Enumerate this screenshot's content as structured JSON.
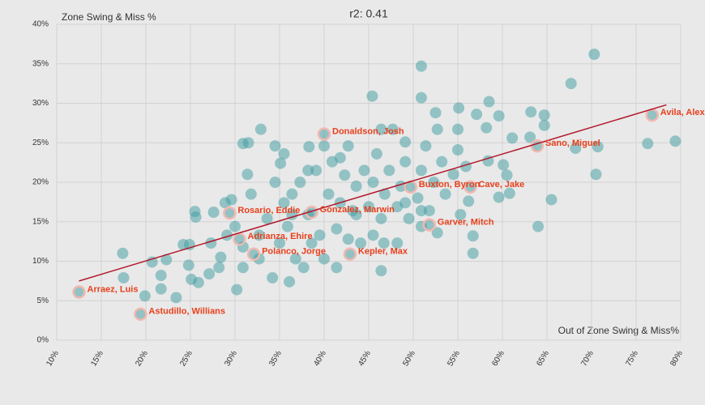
{
  "chart_data": {
    "type": "scatter",
    "title": "r2: 0.41",
    "y_label": "Zone Swing & Miss %",
    "x_label": "Out of Zone Swing & Miss%",
    "xlim": [
      10,
      80
    ],
    "ylim": [
      0,
      40
    ],
    "xticks": [
      {
        "value": 10,
        "label": "10%"
      },
      {
        "value": 15,
        "label": "15%"
      },
      {
        "value": 20,
        "label": "20%"
      },
      {
        "value": 25,
        "label": "25%"
      },
      {
        "value": 30,
        "label": "30%"
      },
      {
        "value": 35,
        "label": "35%"
      },
      {
        "value": 40,
        "label": "40%"
      },
      {
        "value": 45,
        "label": "45%"
      },
      {
        "value": 50,
        "label": "50%"
      },
      {
        "value": 55,
        "label": "55%"
      },
      {
        "value": 60,
        "label": "60%"
      },
      {
        "value": 65,
        "label": "65%"
      },
      {
        "value": 70,
        "label": "70%"
      },
      {
        "value": 75,
        "label": "75%"
      },
      {
        "value": 80,
        "label": "80%"
      }
    ],
    "yticks": [
      {
        "value": 0,
        "label": "0%"
      },
      {
        "value": 5,
        "label": "5%"
      },
      {
        "value": 10,
        "label": "10%"
      },
      {
        "value": 15,
        "label": "15%"
      },
      {
        "value": 20,
        "label": "20%"
      },
      {
        "value": 25,
        "label": "25%"
      },
      {
        "value": 30,
        "label": "30%"
      },
      {
        "value": 35,
        "label": "35%"
      },
      {
        "value": 40,
        "label": "40%"
      }
    ],
    "grid": true,
    "series": [
      {
        "color": "#3d9ba0",
        "x": [
          17.4,
          17.5,
          20.7,
          19.9,
          21.7,
          22.3,
          21.7,
          24.2,
          24.9,
          24.8,
          23.4,
          25.1,
          25.9,
          25.5,
          25.6,
          27.1,
          27.6,
          28.4,
          28.9,
          29.6,
          30.2,
          30.9,
          31.5,
          32.9,
          31.4,
          34.5,
          35.1,
          34.2,
          36.1,
          38.3,
          45.4,
          50.9,
          50.9,
          52.5,
          55.1,
          58.5,
          57.1,
          59.6,
          63.2,
          64.7,
          67.7,
          70.3,
          64.7,
          61.1,
          63.1,
          68.2,
          70.7,
          70.5,
          76.3,
          79.4,
          60.5,
          60.8,
          59.6,
          65.5,
          64.0,
          56.7,
          56.7,
          52.7,
          46.4,
          46.7,
          50.9,
          55.3,
          56.2,
          58.4,
          60.1,
          58.2,
          55.0,
          35.5,
          36.4,
          37.3,
          38.2,
          39.1,
          39.5,
          40.5,
          40.9,
          41.4,
          41.8,
          42.3,
          42.7,
          43.2,
          43.6,
          44.1,
          44.5,
          45.0,
          45.5,
          45.9,
          46.4,
          46.8,
          47.3,
          47.7,
          48.2,
          48.6,
          49.1,
          49.5,
          50.5,
          50.9,
          51.4,
          51.8,
          52.3,
          53.2,
          53.6,
          54.5,
          55.0,
          55.9,
          33.6,
          32.7,
          31.8,
          34.5,
          35.0,
          35.9,
          36.8,
          37.7,
          38.6,
          40.0,
          41.4,
          42.7,
          45.5,
          48.2,
          30.9,
          29.1,
          28.2,
          27.3,
          30.0,
          32.7,
          30.9,
          35.5,
          40.0,
          41.8,
          46.4,
          49.1,
          52.7,
          38.2,
          36.4,
          43.6,
          49.1,
          50.9
        ],
        "values": [
          11.0,
          7.9,
          9.9,
          5.6,
          6.5,
          10.2,
          8.2,
          12.1,
          12.1,
          9.5,
          5.4,
          7.7,
          7.3,
          16.3,
          15.6,
          8.4,
          16.2,
          10.5,
          17.4,
          17.8,
          6.4,
          24.9,
          25.0,
          26.7,
          21.0,
          24.6,
          22.4,
          7.9,
          7.4,
          24.5,
          30.9,
          34.7,
          30.7,
          28.8,
          29.4,
          30.2,
          28.6,
          28.4,
          28.9,
          28.5,
          32.5,
          36.2,
          27.2,
          25.6,
          25.7,
          24.3,
          24.5,
          21.0,
          24.9,
          25.2,
          20.9,
          18.6,
          18.1,
          17.8,
          14.4,
          13.2,
          11.0,
          13.6,
          8.8,
          12.3,
          14.4,
          15.9,
          17.6,
          22.7,
          22.2,
          26.9,
          26.7,
          17.4,
          18.5,
          20.0,
          15.9,
          21.5,
          13.3,
          18.5,
          22.6,
          14.1,
          17.4,
          20.9,
          24.6,
          16.4,
          19.5,
          12.3,
          21.5,
          16.9,
          20.0,
          23.6,
          15.4,
          18.5,
          21.5,
          26.7,
          16.9,
          19.5,
          22.6,
          15.4,
          18.0,
          21.5,
          24.6,
          16.4,
          20.0,
          22.6,
          18.5,
          21.0,
          24.1,
          22.0,
          15.4,
          13.3,
          18.5,
          20.0,
          12.3,
          14.4,
          10.3,
          9.2,
          12.3,
          10.3,
          9.2,
          12.8,
          13.3,
          12.3,
          11.8,
          13.3,
          9.2,
          12.3,
          14.4,
          10.3,
          9.2,
          23.6,
          24.6,
          23.1,
          26.7,
          25.1,
          26.7,
          21.5,
          15.9,
          15.9,
          17.4,
          16.4
        ]
      },
      {
        "color": "#3d9ba0",
        "ring": "#f2b8b0",
        "label_color": "#e8401c",
        "x": [
          12.5,
          19.4,
          29.4,
          30.5,
          32.1,
          38.6,
          40.0,
          42.9,
          49.7,
          51.8,
          56.4,
          63.9,
          76.8
        ],
        "values": [
          6.1,
          3.3,
          16.1,
          12.8,
          10.9,
          16.2,
          26.1,
          10.9,
          19.4,
          14.6,
          19.4,
          24.6,
          28.5
        ],
        "labels": [
          "Arraez, Luis",
          "Astudillo, Willians",
          "Rosario, Eddie",
          "Adrianza, Ehire",
          "Polanco, Jorge",
          "Gonzalez, Marwin",
          "Donaldson, Josh",
          "Kepler, Max",
          "Buxton, Byron",
          "Garver, Mitch",
          "Cave, Jake",
          "Sano, Miguel",
          "Avila, Alex"
        ]
      }
    ],
    "trendline": {
      "color": "#b2182b",
      "x": [
        12.5,
        78.4
      ],
      "values": [
        7.5,
        29.8
      ]
    }
  }
}
